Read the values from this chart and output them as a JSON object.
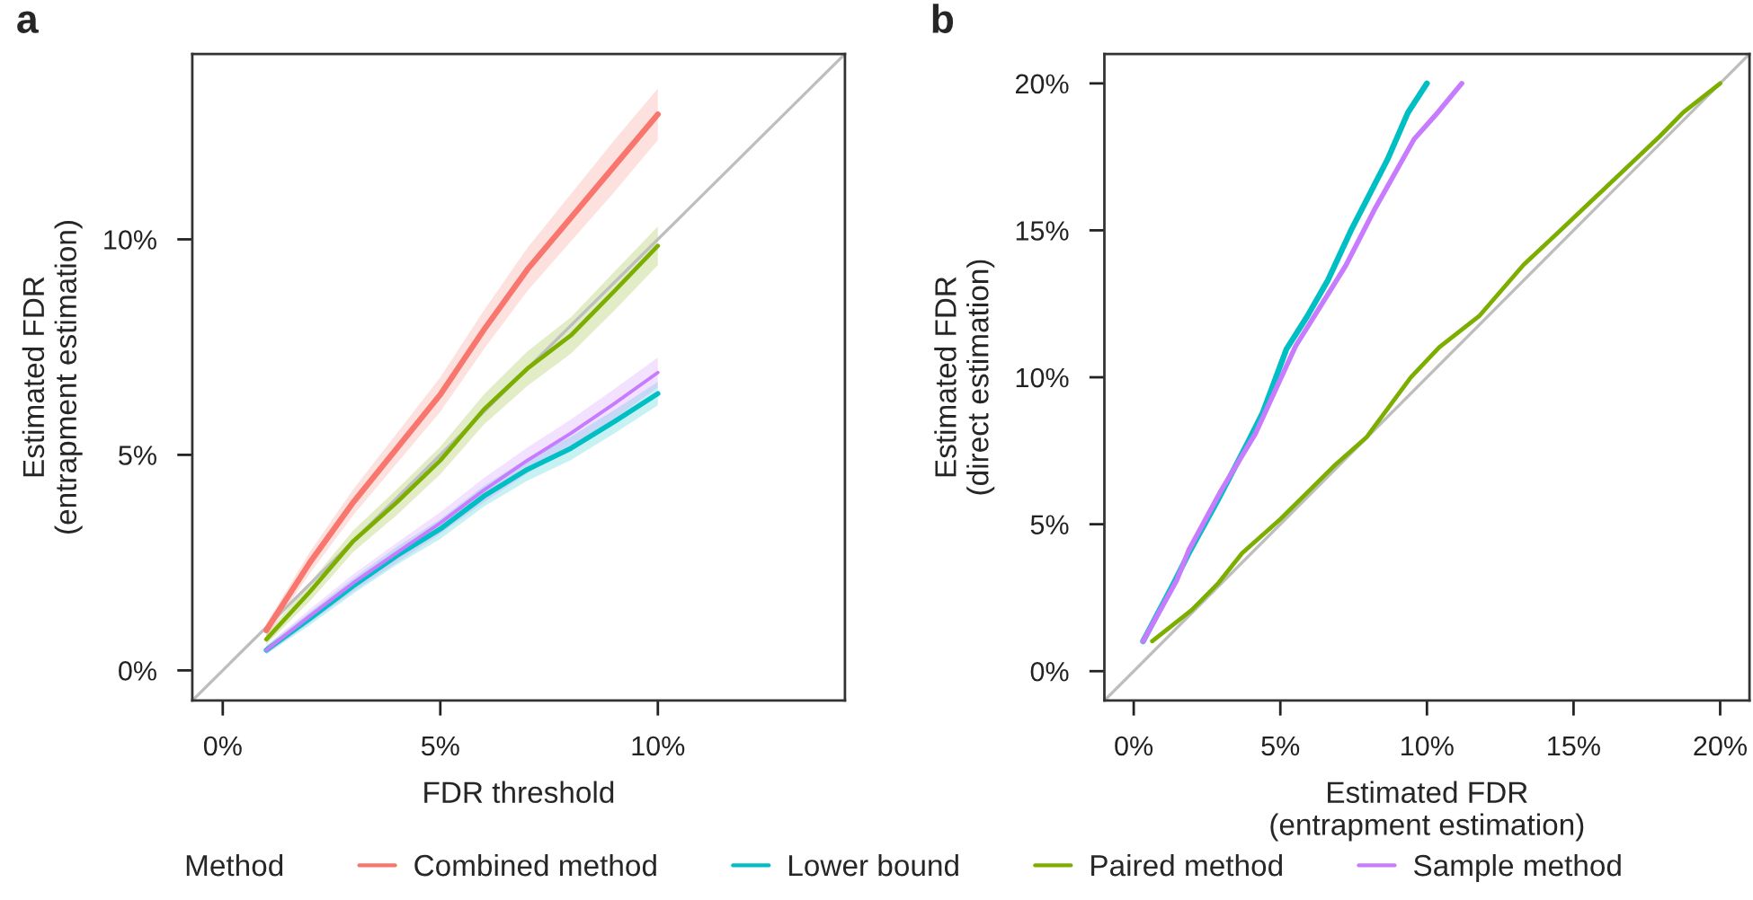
{
  "chart_data": [
    {
      "type": "line",
      "title": "a",
      "xlabel": "FDR threshold",
      "ylabel": "Estimated FDR\n(entrapment estimation)",
      "legend_title": "Method",
      "legend": "bottom",
      "grid": false,
      "xlim": [
        -0.7,
        14.3
      ],
      "ylim": [
        -0.7,
        14.3
      ],
      "xticks": [
        {
          "value": 0,
          "label": "0%"
        },
        {
          "value": 5,
          "label": "5%"
        },
        {
          "value": 10,
          "label": "10%"
        }
      ],
      "yticks": [
        {
          "value": 0,
          "label": "0%"
        },
        {
          "value": 5,
          "label": "5%"
        },
        {
          "value": 10,
          "label": "10%"
        }
      ],
      "x": [
        1,
        2,
        3,
        4,
        5,
        6,
        7,
        8,
        9,
        10
      ],
      "series": [
        {
          "name": null,
          "color": "#bebebe",
          "x": [
            -0.7,
            14.3
          ],
          "values": [
            -0.7,
            14.3
          ]
        },
        {
          "name": "Combined method",
          "color": "#f8766d",
          "values": [
            0.93,
            2.5,
            3.9,
            5.15,
            6.4,
            7.9,
            9.3,
            10.5,
            11.7,
            12.9
          ],
          "lower": [
            0.78,
            2.25,
            3.6,
            4.8,
            6.0,
            7.45,
            8.8,
            9.95,
            11.1,
            12.3
          ],
          "upper": [
            1.08,
            2.75,
            4.2,
            5.5,
            6.8,
            8.35,
            9.8,
            11.05,
            12.3,
            13.5
          ]
        },
        {
          "name": "Lower bound",
          "color": "#00bfc4",
          "values": [
            0.47,
            1.2,
            1.96,
            2.66,
            3.28,
            4.04,
            4.66,
            5.15,
            5.77,
            6.42
          ],
          "lower": [
            0.37,
            1.05,
            1.78,
            2.45,
            3.05,
            3.8,
            4.4,
            4.88,
            5.5,
            6.15
          ],
          "upper": [
            0.57,
            1.35,
            2.14,
            2.87,
            3.51,
            4.28,
            4.92,
            5.42,
            6.04,
            6.69
          ]
        },
        {
          "name": "Paired method",
          "color": "#7cae00",
          "values": [
            0.72,
            1.82,
            3.0,
            3.9,
            4.87,
            6.05,
            7.0,
            7.77,
            8.8,
            9.85
          ],
          "lower": [
            0.6,
            1.6,
            2.75,
            3.6,
            4.55,
            5.7,
            6.6,
            7.35,
            8.35,
            9.4
          ],
          "upper": [
            0.84,
            2.04,
            3.25,
            4.2,
            5.19,
            6.4,
            7.4,
            8.19,
            9.25,
            10.3
          ]
        },
        {
          "name": "Sample method",
          "color": "#c77cff",
          "values": [
            0.47,
            1.26,
            2.03,
            2.73,
            3.42,
            4.18,
            4.87,
            5.5,
            6.19,
            6.91
          ],
          "lower": [
            0.37,
            1.1,
            1.83,
            2.5,
            3.17,
            3.9,
            4.57,
            5.18,
            5.85,
            6.56
          ],
          "upper": [
            0.57,
            1.42,
            2.23,
            2.96,
            3.67,
            4.46,
            5.17,
            5.82,
            6.53,
            7.26
          ]
        }
      ]
    },
    {
      "type": "line",
      "title": "b",
      "xlabel": "Estimated FDR\n(entrapment estimation)",
      "ylabel": "Estimated FDR\n(direct estimation)",
      "legend": "bottom",
      "grid": false,
      "xlim": [
        -1,
        21
      ],
      "ylim": [
        -1,
        21
      ],
      "xticks": [
        {
          "value": 0,
          "label": "0%"
        },
        {
          "value": 5,
          "label": "5%"
        },
        {
          "value": 10,
          "label": "10%"
        },
        {
          "value": 15,
          "label": "15%"
        },
        {
          "value": 20,
          "label": "20%"
        }
      ],
      "yticks": [
        {
          "value": 0,
          "label": "0%"
        },
        {
          "value": 5,
          "label": "5%"
        },
        {
          "value": 10,
          "label": "10%"
        },
        {
          "value": 15,
          "label": "15%"
        },
        {
          "value": 20,
          "label": "20%"
        }
      ],
      "series": [
        {
          "name": null,
          "color": "#bebebe",
          "x": [
            -1,
            21
          ],
          "values": [
            -1,
            21
          ]
        },
        {
          "name": "Lower bound",
          "color": "#00bfc4",
          "x": [
            0.32,
            1.37,
            1.88,
            2.89,
            3.9,
            4.4,
            5.21,
            5.92,
            6.62,
            7.43,
            8.65,
            9.35,
            10.0
          ],
          "values": [
            1.02,
            3.0,
            4.02,
            5.86,
            7.8,
            8.8,
            10.96,
            12.08,
            13.3,
            15.04,
            17.4,
            19.0,
            20.0
          ]
        },
        {
          "name": "Sample method",
          "color": "#c77cff",
          "x": [
            0.32,
            1.47,
            1.88,
            2.99,
            4.16,
            5.52,
            6.22,
            7.23,
            8.24,
            9.56,
            10.36,
            11.19
          ],
          "values": [
            1.02,
            3.1,
            4.12,
            6.16,
            8.1,
            11.06,
            12.18,
            13.8,
            15.76,
            18.1,
            19.0,
            20.0
          ]
        },
        {
          "name": "Paired method",
          "color": "#7cae00",
          "x": [
            0.63,
            1.98,
            2.89,
            3.7,
            5.01,
            6.83,
            7.94,
            9.45,
            10.42,
            11.78,
            13.29,
            14.81,
            17.94,
            18.75,
            20.0
          ],
          "values": [
            1.02,
            2.08,
            3.0,
            4.02,
            5.18,
            6.98,
            7.96,
            10.0,
            11.02,
            12.08,
            13.82,
            15.24,
            18.2,
            19.02,
            20.0
          ]
        }
      ]
    }
  ]
}
